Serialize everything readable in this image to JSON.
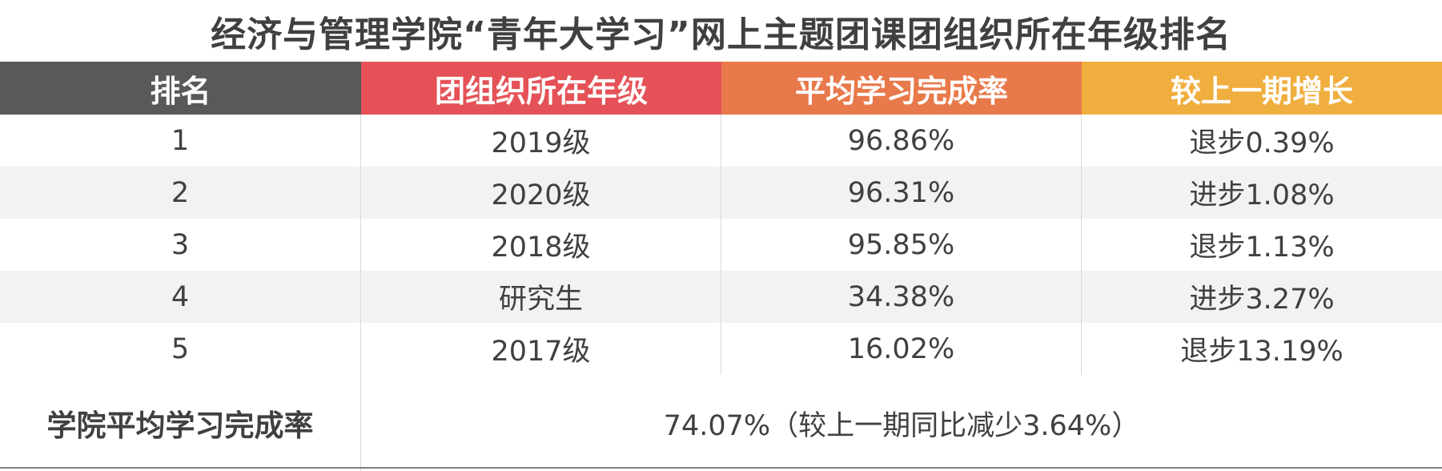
{
  "title": "经济与管理学院“青年大学习”网上主题团课团组织所在年级排名",
  "headers": [
    "排名",
    "团组织所在年级",
    "平均学习完成率",
    "较上一期增长"
  ],
  "rows": [
    {
      "rank": "1",
      "grade": "2019级",
      "rate": "96.86%",
      "change": "退步0.39%"
    },
    {
      "rank": "2",
      "grade": "2020级",
      "rate": "96.31%",
      "change": "进步1.08%"
    },
    {
      "rank": "3",
      "grade": "2018级",
      "rate": "95.85%",
      "change": "退步1.13%"
    },
    {
      "rank": "4",
      "grade": "研究生",
      "rate": "34.38%",
      "change": "进步3.27%"
    },
    {
      "rank": "5",
      "grade": "2017级",
      "rate": "16.02%",
      "change": "退步13.19%"
    }
  ],
  "footer": {
    "label": "学院平均学习完成率",
    "value": "74.07%（较上一期同比减少3.64%）"
  },
  "colors": {
    "header_rank": "#595959",
    "header_grade": "#e45257",
    "header_rate": "#e8794a",
    "header_change": "#f0ae3e",
    "row_alt": "#f2f2f2",
    "text": "#404040"
  }
}
